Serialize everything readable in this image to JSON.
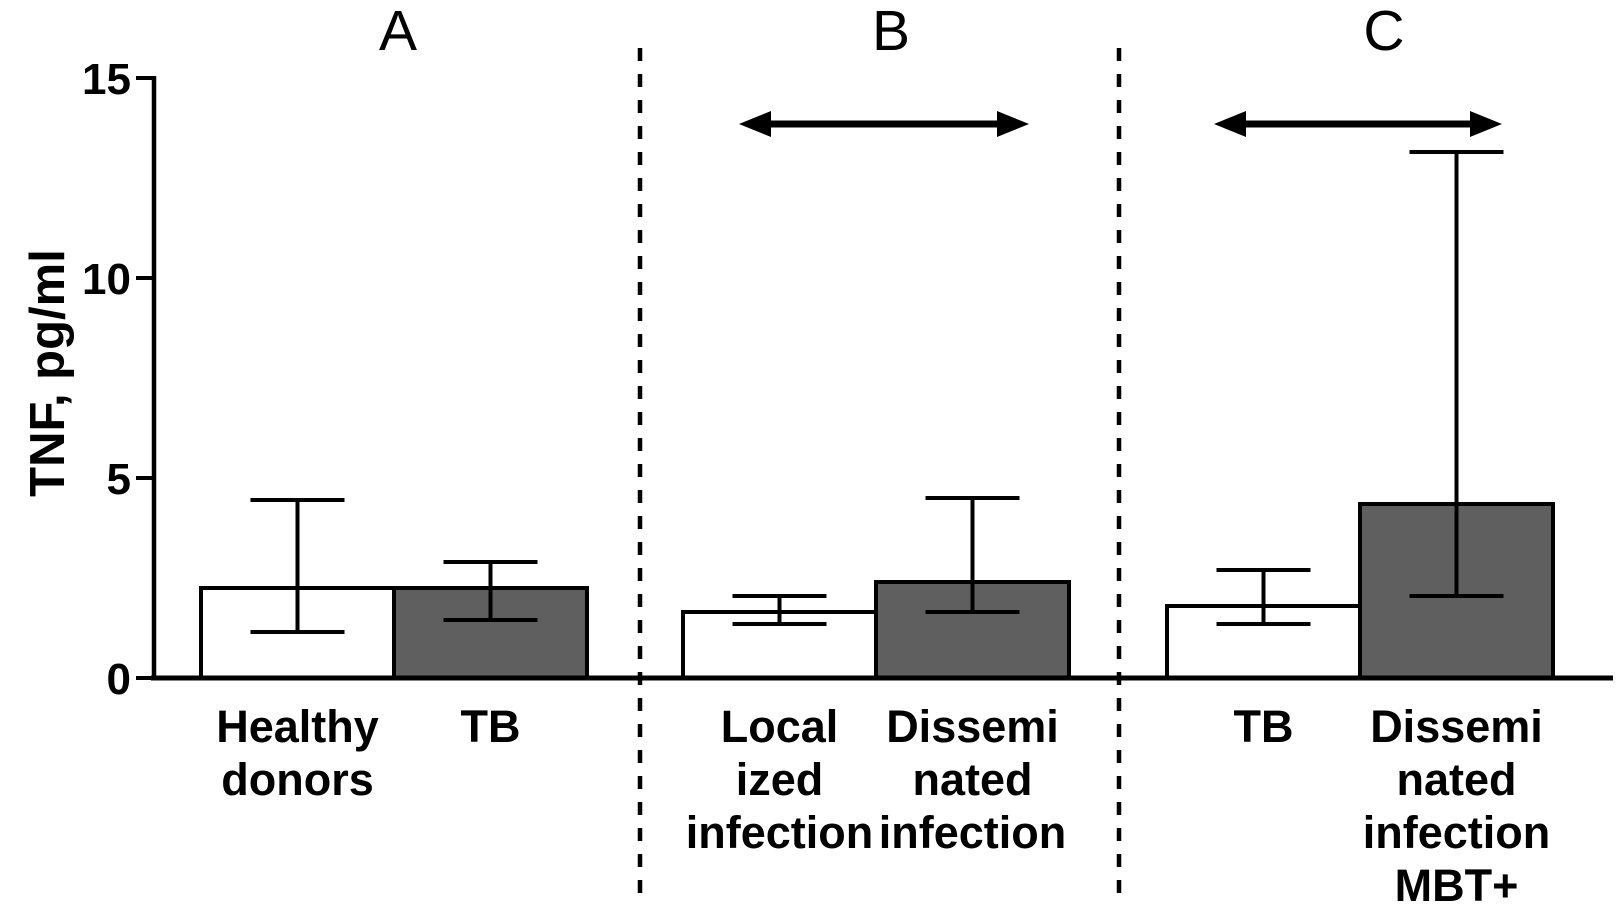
{
  "figure": {
    "background": "#ffffff",
    "stroke_color": "#000000",
    "bar_fill_white": "#ffffff",
    "bar_fill_gray": "#5f5f5f"
  },
  "chart_data": {
    "type": "bar",
    "title": "",
    "ylabel": "TNF, pg/ml",
    "xlabel": "",
    "ylim": [
      0,
      15
    ],
    "yticks": [
      0,
      5,
      10,
      15
    ],
    "grid": false,
    "legend": "none",
    "error_bars": "asymmetric, capped, min-max style",
    "panels": [
      {
        "label": "A",
        "comparison_arrow": false,
        "bars": [
          {
            "category": "Healthy donors",
            "label_lines": [
              "Healthy",
              "donors"
            ],
            "value": 2.25,
            "err_low": 1.15,
            "err_high": 4.45,
            "fill": "white"
          },
          {
            "category": "TB",
            "label_lines": [
              "TB"
            ],
            "value": 2.25,
            "err_low": 1.45,
            "err_high": 2.9,
            "fill": "gray"
          }
        ]
      },
      {
        "label": "B",
        "comparison_arrow": true,
        "bars": [
          {
            "category": "Localized infection",
            "label_lines": [
              "Local",
              "ized",
              "infection"
            ],
            "value": 1.65,
            "err_low": 1.35,
            "err_high": 2.05,
            "fill": "white"
          },
          {
            "category": "Disseminated infection",
            "label_lines": [
              "Dissemi",
              "nated",
              "infection"
            ],
            "value": 2.4,
            "err_low": 1.65,
            "err_high": 4.5,
            "fill": "gray"
          }
        ]
      },
      {
        "label": "C",
        "comparison_arrow": true,
        "bars": [
          {
            "category": "TB",
            "label_lines": [
              "TB"
            ],
            "value": 1.8,
            "err_low": 1.35,
            "err_high": 2.7,
            "fill": "white"
          },
          {
            "category": "Disseminated infection MBT+",
            "label_lines": [
              "Dissemi",
              "nated",
              "infection",
              "MBT+"
            ],
            "value": 4.35,
            "err_low": 2.05,
            "err_high": 13.15,
            "fill": "gray"
          }
        ]
      }
    ]
  }
}
